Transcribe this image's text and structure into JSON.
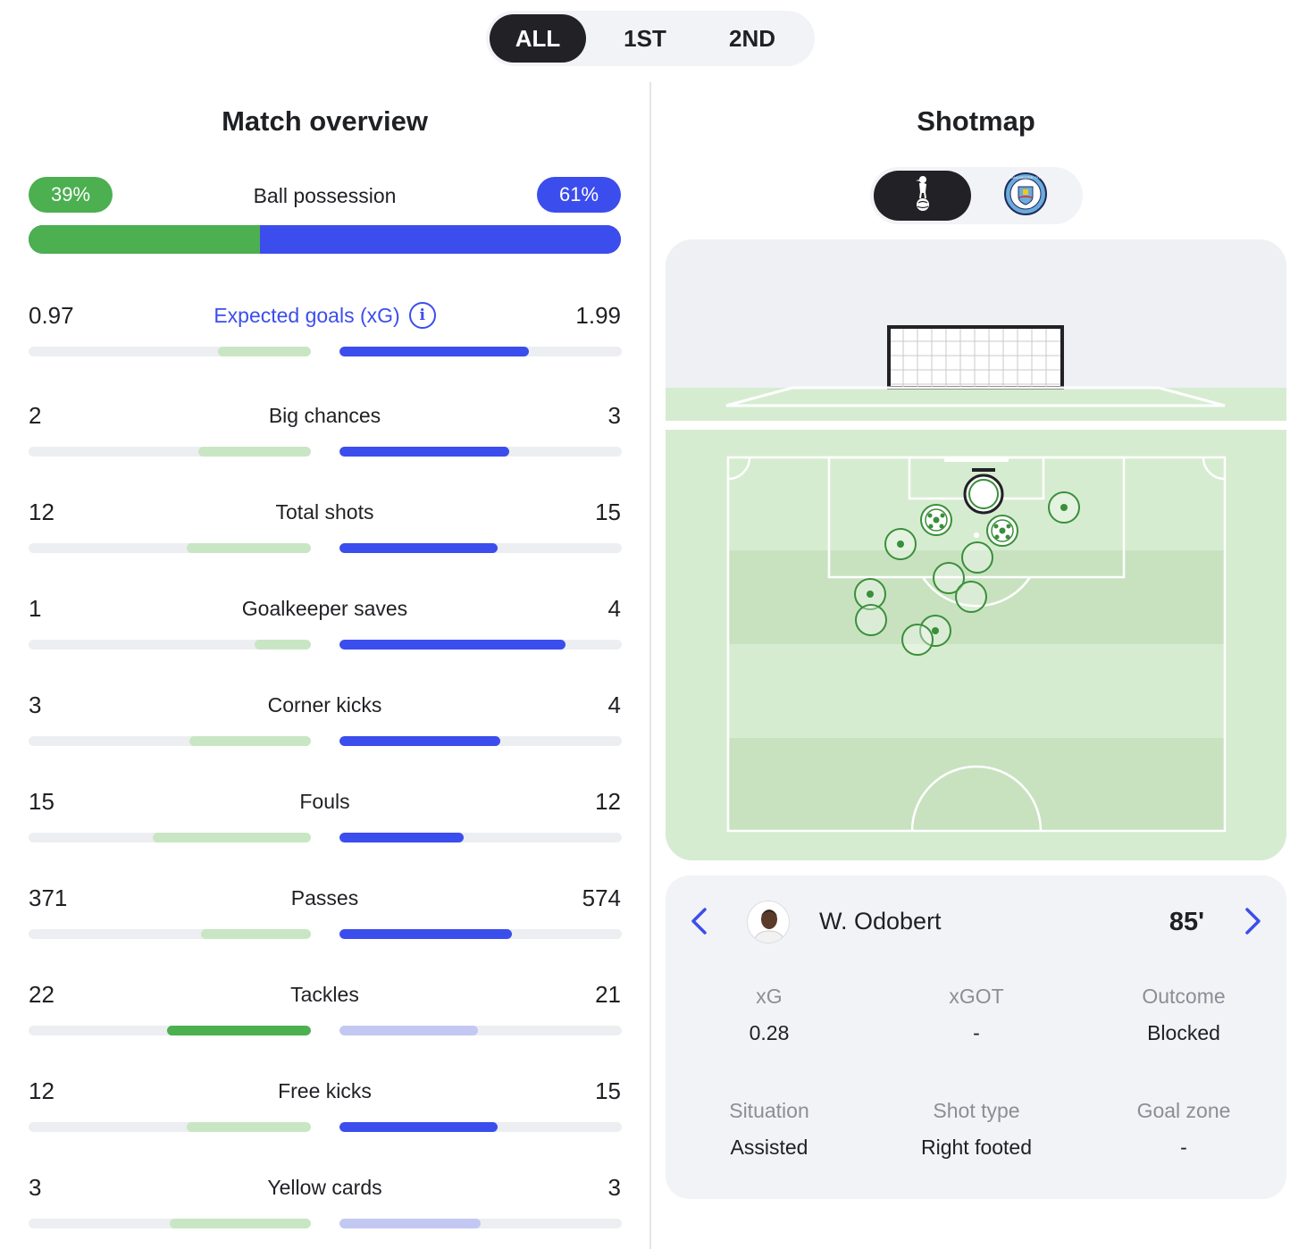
{
  "period_tabs": [
    "ALL",
    "1ST",
    "2ND"
  ],
  "overview": {
    "title": "Match overview",
    "possession": {
      "label": "Ball possession",
      "home": "39%",
      "away": "61%",
      "home_value": 39,
      "away_value": 61
    },
    "stats": [
      {
        "label": "Expected goals (xG)",
        "home": "0.97",
        "away": "1.99",
        "home_fill": 0.33,
        "away_fill": 0.67,
        "highlight": "away",
        "link": true,
        "info": "i"
      },
      {
        "label": "Big chances",
        "home": "2",
        "away": "3",
        "home_fill": 0.4,
        "away_fill": 0.6,
        "highlight": "away"
      },
      {
        "label": "Total shots",
        "home": "12",
        "away": "15",
        "home_fill": 0.44,
        "away_fill": 0.56,
        "highlight": "away"
      },
      {
        "label": "Goalkeeper saves",
        "home": "1",
        "away": "4",
        "home_fill": 0.2,
        "away_fill": 0.8,
        "highlight": "away"
      },
      {
        "label": "Corner kicks",
        "home": "3",
        "away": "4",
        "home_fill": 0.43,
        "away_fill": 0.57,
        "highlight": "away"
      },
      {
        "label": "Fouls",
        "home": "15",
        "away": "12",
        "home_fill": 0.56,
        "away_fill": 0.44,
        "highlight": "away"
      },
      {
        "label": "Passes",
        "home": "371",
        "away": "574",
        "home_fill": 0.39,
        "away_fill": 0.61,
        "highlight": "away"
      },
      {
        "label": "Tackles",
        "home": "22",
        "away": "21",
        "home_fill": 0.51,
        "away_fill": 0.49,
        "highlight": "home"
      },
      {
        "label": "Free kicks",
        "home": "12",
        "away": "15",
        "home_fill": 0.44,
        "away_fill": 0.56,
        "highlight": "away"
      },
      {
        "label": "Yellow cards",
        "home": "3",
        "away": "3",
        "home_fill": 0.5,
        "away_fill": 0.5,
        "highlight": "none"
      }
    ]
  },
  "colors": {
    "home": "#4caf50",
    "home_light": "#c9e6c4",
    "away": "#3c4ded",
    "away_light": "#c3c8f3",
    "pitch_light": "#d6ecd0",
    "pitch_dark": "#c8e2c0",
    "pitch_line": "#ffffff"
  },
  "shotmap": {
    "title": "Shotmap",
    "teams": [
      {
        "name": "Tottenham Hotspur",
        "icon": "tottenham-crest-icon",
        "active": true
      },
      {
        "name": "Manchester City",
        "icon": "man-city-crest-icon",
        "badge_text": "MANCHESTER CITY",
        "active": false
      }
    ],
    "selected_shot": {
      "player": "W. Odobert",
      "minute": "85'",
      "fields": [
        {
          "key": "xG",
          "value": "0.28"
        },
        {
          "key": "xGOT",
          "value": "-"
        },
        {
          "key": "Outcome",
          "value": "Blocked"
        },
        {
          "key": "Situation",
          "value": "Assisted"
        },
        {
          "key": "Shot type",
          "value": "Right footed"
        },
        {
          "key": "Goal zone",
          "value": "-"
        }
      ]
    }
  }
}
